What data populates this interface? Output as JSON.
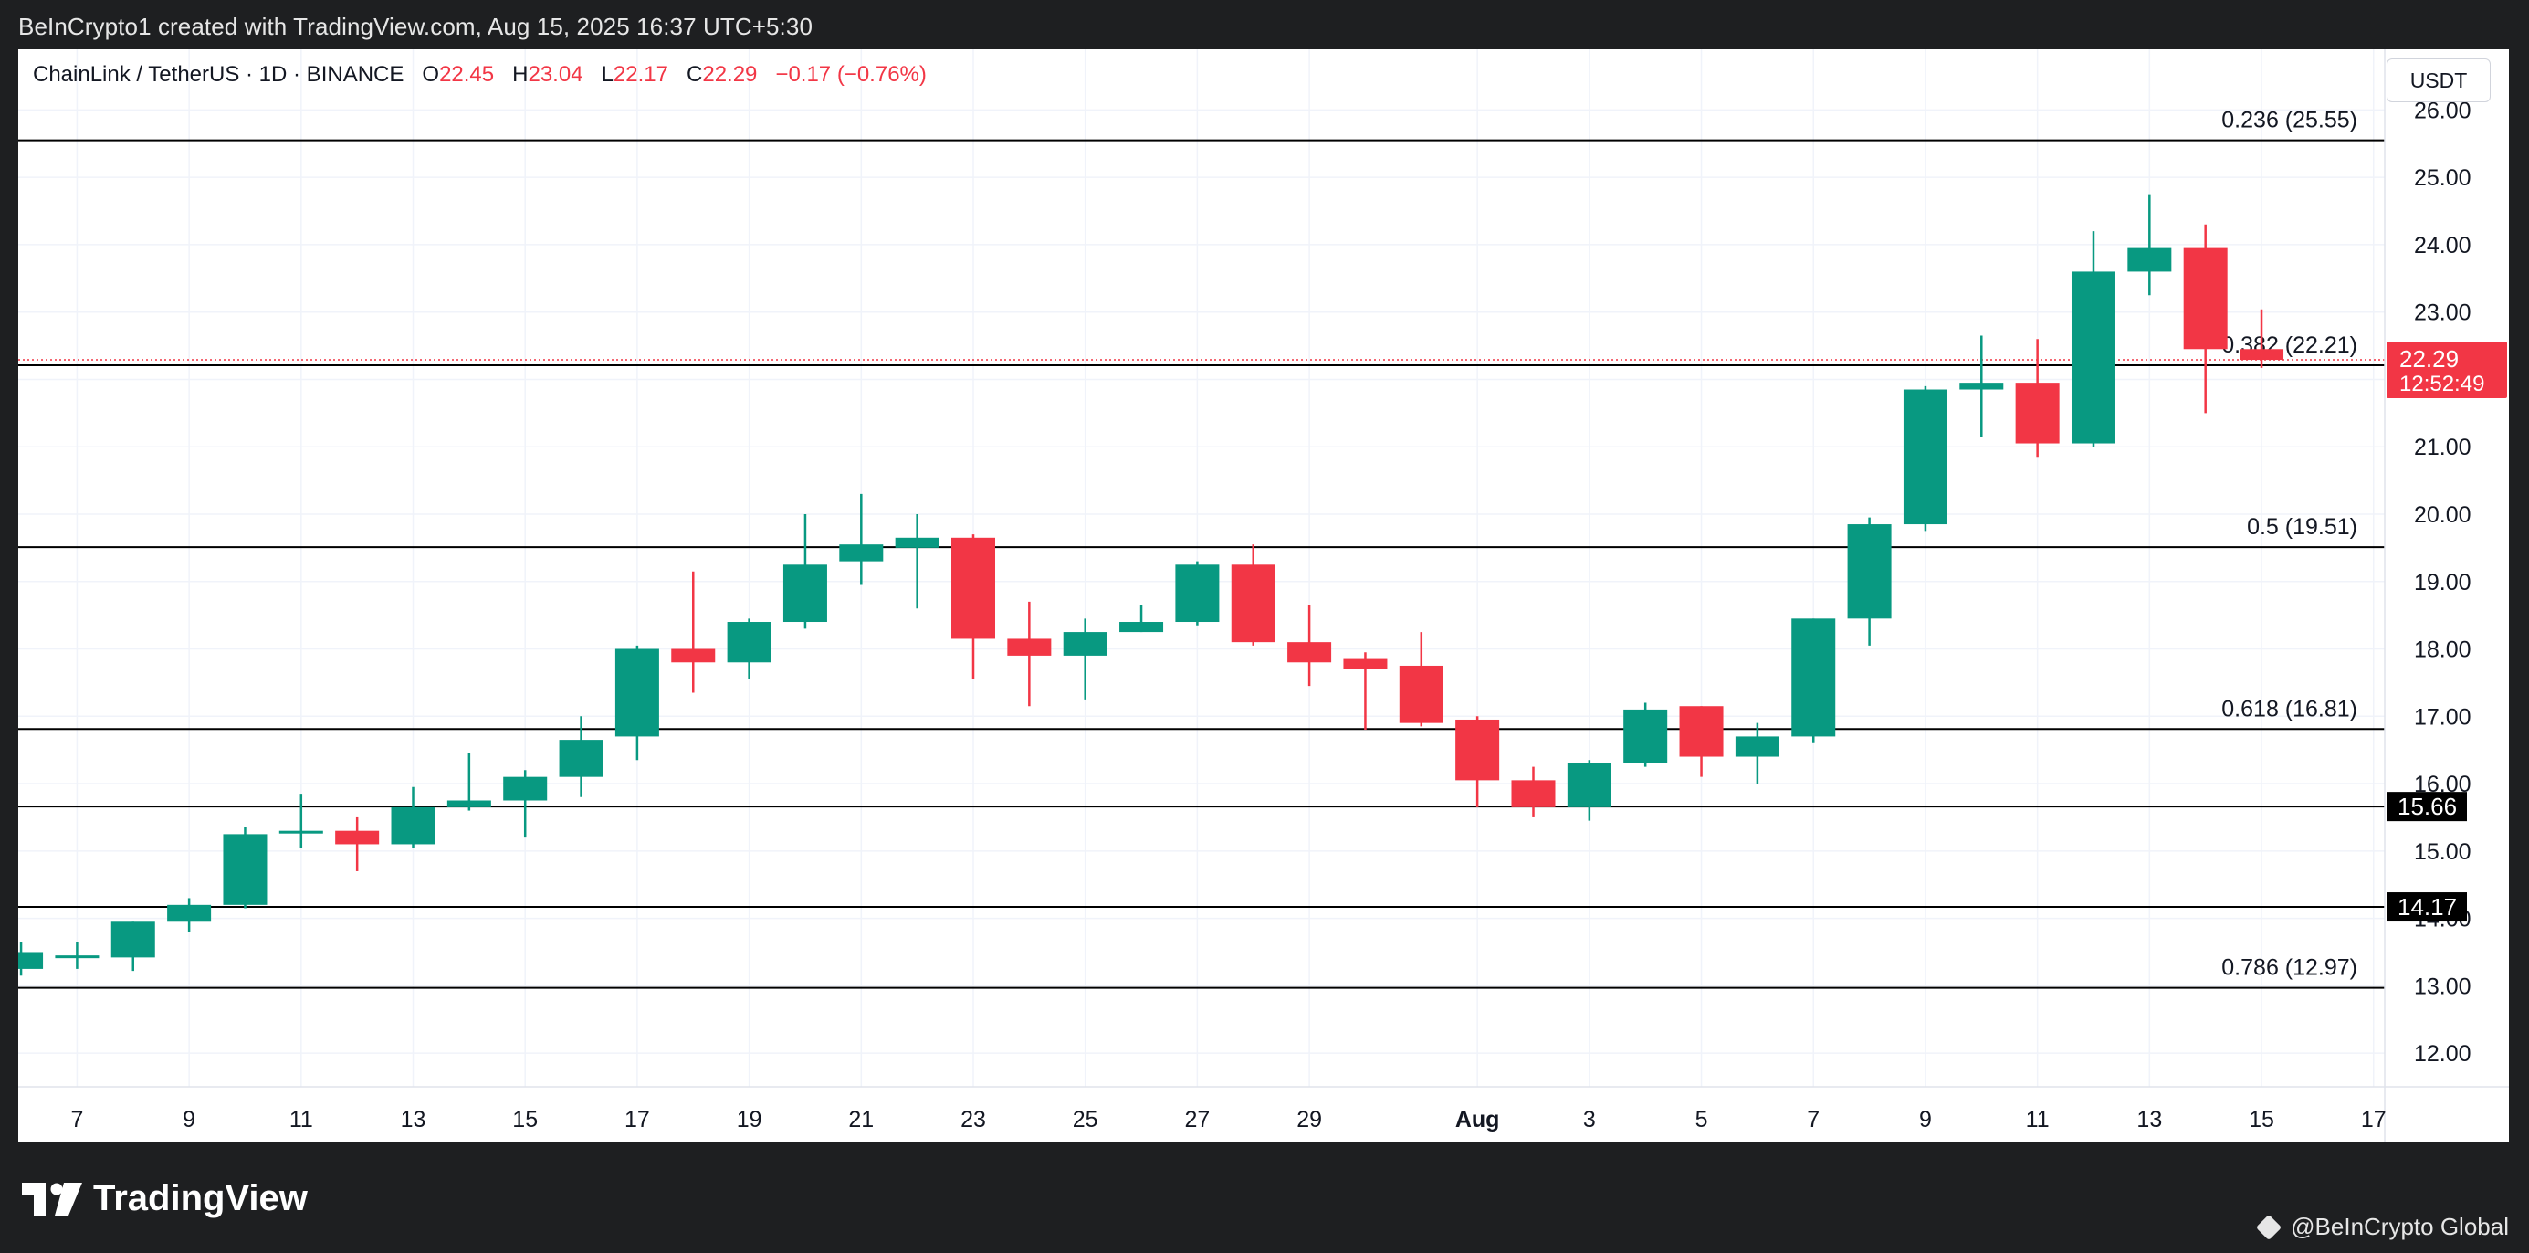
{
  "header": {
    "created_line": "BeInCrypto1 created with TradingView.com, Aug 15, 2025 16:37 UTC+5:30"
  },
  "legend": {
    "symbol": "ChainLink / TetherUS · 1D · BINANCE",
    "o_label": "O",
    "o_value": "22.45",
    "h_label": "H",
    "h_value": "23.04",
    "l_label": "L",
    "l_value": "22.17",
    "c_label": "C",
    "c_value": "22.29",
    "change": "−0.17 (−0.76%)"
  },
  "currency_label": "USDT",
  "footer": {
    "logo_text": "TradingView",
    "credit": "@BeInCrypto Global"
  },
  "colors": {
    "up": "#089981",
    "down": "#f23645",
    "grid": "#f0f3fa",
    "text": "#131722",
    "level_line": "#000000"
  },
  "chart_data": {
    "type": "candlestick",
    "title": "ChainLink / TetherUS · 1D · BINANCE",
    "ylim": [
      11.5,
      26.9
    ],
    "y_ticks": [
      12,
      13,
      14,
      15,
      16,
      17,
      18,
      19,
      20,
      21,
      22,
      23,
      24,
      25,
      26
    ],
    "y_tick_labels": [
      "12.00",
      "13.00",
      "14.00",
      "15.00",
      "16.00",
      "17.00",
      "18.00",
      "19.00",
      "20.00",
      "21.00",
      "22.00",
      "23.00",
      "24.00",
      "25.00",
      "26.00"
    ],
    "x_ticks": [
      {
        "day": 7,
        "label": "7"
      },
      {
        "day": 9,
        "label": "9"
      },
      {
        "day": 11,
        "label": "11"
      },
      {
        "day": 13,
        "label": "13"
      },
      {
        "day": 15,
        "label": "15"
      },
      {
        "day": 17,
        "label": "17"
      },
      {
        "day": 19,
        "label": "19"
      },
      {
        "day": 21,
        "label": "21"
      },
      {
        "day": 23,
        "label": "23"
      },
      {
        "day": 25,
        "label": "25"
      },
      {
        "day": 27,
        "label": "27"
      },
      {
        "day": 29,
        "label": "29"
      },
      {
        "day": 32,
        "label": "Aug"
      },
      {
        "day": 34,
        "label": "3"
      },
      {
        "day": 36,
        "label": "5"
      },
      {
        "day": 38,
        "label": "7"
      },
      {
        "day": 40,
        "label": "9"
      },
      {
        "day": 42,
        "label": "11"
      },
      {
        "day": 44,
        "label": "13"
      },
      {
        "day": 46,
        "label": "15"
      },
      {
        "day": 48,
        "label": "17"
      }
    ],
    "day_range": [
      5.95,
      48.2
    ],
    "candles": [
      {
        "day": 6,
        "o": 13.25,
        "h": 13.65,
        "l": 13.15,
        "c": 13.5
      },
      {
        "day": 7,
        "o": 13.45,
        "h": 13.65,
        "l": 13.25,
        "c": 13.45
      },
      {
        "day": 8,
        "o": 13.42,
        "h": 13.95,
        "l": 13.22,
        "c": 13.95
      },
      {
        "day": 9,
        "o": 13.95,
        "h": 14.3,
        "l": 13.8,
        "c": 14.2
      },
      {
        "day": 10,
        "o": 14.2,
        "h": 15.35,
        "l": 14.15,
        "c": 15.25
      },
      {
        "day": 11,
        "o": 15.3,
        "h": 15.85,
        "l": 15.05,
        "c": 15.3
      },
      {
        "day": 12,
        "o": 15.3,
        "h": 15.5,
        "l": 14.7,
        "c": 15.1
      },
      {
        "day": 13,
        "o": 15.1,
        "h": 15.95,
        "l": 15.05,
        "c": 15.65
      },
      {
        "day": 14,
        "o": 15.65,
        "h": 16.45,
        "l": 15.6,
        "c": 15.75
      },
      {
        "day": 15,
        "o": 15.75,
        "h": 16.2,
        "l": 15.2,
        "c": 16.1
      },
      {
        "day": 16,
        "o": 16.1,
        "h": 17.0,
        "l": 15.8,
        "c": 16.65
      },
      {
        "day": 17,
        "o": 16.7,
        "h": 18.05,
        "l": 16.35,
        "c": 18.0
      },
      {
        "day": 18,
        "o": 18.0,
        "h": 19.15,
        "l": 17.35,
        "c": 17.8
      },
      {
        "day": 19,
        "o": 17.8,
        "h": 18.45,
        "l": 17.55,
        "c": 18.4
      },
      {
        "day": 20,
        "o": 18.4,
        "h": 20.0,
        "l": 18.3,
        "c": 19.25
      },
      {
        "day": 21,
        "o": 19.3,
        "h": 20.3,
        "l": 18.95,
        "c": 19.55
      },
      {
        "day": 22,
        "o": 19.5,
        "h": 20.0,
        "l": 18.6,
        "c": 19.65
      },
      {
        "day": 23,
        "o": 19.65,
        "h": 19.7,
        "l": 17.55,
        "c": 18.15
      },
      {
        "day": 24,
        "o": 18.15,
        "h": 18.7,
        "l": 17.15,
        "c": 17.9
      },
      {
        "day": 25,
        "o": 17.9,
        "h": 18.45,
        "l": 17.25,
        "c": 18.25
      },
      {
        "day": 26,
        "o": 18.25,
        "h": 18.65,
        "l": 18.25,
        "c": 18.4
      },
      {
        "day": 27,
        "o": 18.4,
        "h": 19.3,
        "l": 18.35,
        "c": 19.25
      },
      {
        "day": 28,
        "o": 19.25,
        "h": 19.55,
        "l": 18.05,
        "c": 18.1
      },
      {
        "day": 29,
        "o": 18.1,
        "h": 18.65,
        "l": 17.45,
        "c": 17.8
      },
      {
        "day": 30,
        "o": 17.85,
        "h": 17.95,
        "l": 16.8,
        "c": 17.7
      },
      {
        "day": 31,
        "o": 17.75,
        "h": 18.25,
        "l": 16.85,
        "c": 16.9
      },
      {
        "day": 32,
        "o": 16.95,
        "h": 17.0,
        "l": 15.65,
        "c": 16.05
      },
      {
        "day": 33,
        "o": 16.05,
        "h": 16.25,
        "l": 15.5,
        "c": 15.65
      },
      {
        "day": 34,
        "o": 15.65,
        "h": 16.35,
        "l": 15.45,
        "c": 16.3
      },
      {
        "day": 35,
        "o": 16.3,
        "h": 17.2,
        "l": 16.25,
        "c": 17.1
      },
      {
        "day": 36,
        "o": 17.15,
        "h": 17.15,
        "l": 16.1,
        "c": 16.4
      },
      {
        "day": 37,
        "o": 16.4,
        "h": 16.9,
        "l": 16.0,
        "c": 16.7
      },
      {
        "day": 38,
        "o": 16.7,
        "h": 18.45,
        "l": 16.6,
        "c": 18.45
      },
      {
        "day": 39,
        "o": 18.45,
        "h": 19.95,
        "l": 18.05,
        "c": 19.85
      },
      {
        "day": 40,
        "o": 19.85,
        "h": 21.9,
        "l": 19.75,
        "c": 21.85
      },
      {
        "day": 41,
        "o": 21.85,
        "h": 22.65,
        "l": 21.15,
        "c": 21.95
      },
      {
        "day": 42,
        "o": 21.95,
        "h": 22.6,
        "l": 20.85,
        "c": 21.05
      },
      {
        "day": 43,
        "o": 21.05,
        "h": 24.2,
        "l": 21.0,
        "c": 23.6
      },
      {
        "day": 44,
        "o": 23.6,
        "h": 24.75,
        "l": 23.25,
        "c": 23.95
      },
      {
        "day": 45,
        "o": 23.95,
        "h": 24.3,
        "l": 21.5,
        "c": 22.45
      },
      {
        "day": 46,
        "o": 22.45,
        "h": 23.04,
        "l": 22.17,
        "c": 22.29
      }
    ],
    "fib_levels": [
      {
        "price": 25.55,
        "label": "0.236 (25.55)"
      },
      {
        "price": 22.21,
        "label": "0.382 (22.21)"
      },
      {
        "price": 19.51,
        "label": "0.5 (19.51)"
      },
      {
        "price": 16.81,
        "label": "0.618 (16.81)"
      },
      {
        "price": 12.97,
        "label": "0.786 (12.97)"
      }
    ],
    "horizontal_levels": [
      {
        "price": 15.66,
        "label": "15.66"
      },
      {
        "price": 14.17,
        "label": "14.17"
      }
    ],
    "last_price": {
      "price": 22.29,
      "label": "22.29",
      "countdown": "12:52:49"
    }
  }
}
